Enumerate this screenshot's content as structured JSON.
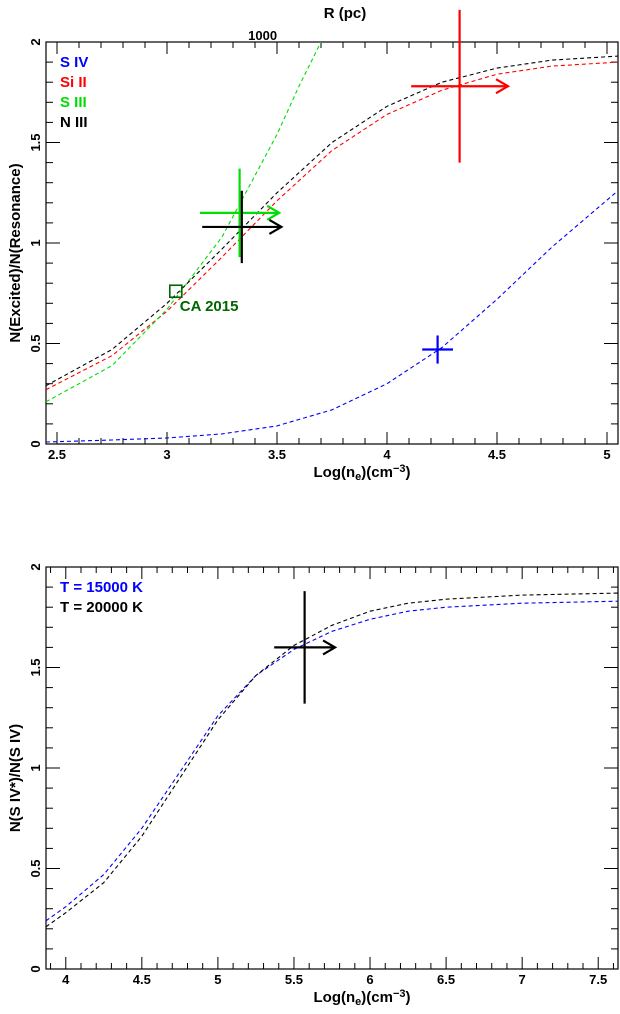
{
  "chart_data": [
    {
      "type": "line",
      "top_axis_label": "R (pc)",
      "top_tick_label": "1000",
      "top_tick_x": 3.23,
      "xlabel": "Log(n_e)(cm^-3)",
      "xlabel_main": "Log(n",
      "xlabel_sub": "e",
      "xlabel_mid": ")(cm",
      "xlabel_sup": "−3",
      "xlabel_end": ")",
      "ylabel": "N(Excited)/N(Resonance)",
      "xlim": [
        2.45,
        5.05
      ],
      "ylim": [
        0,
        2
      ],
      "xticks": [
        2.5,
        3,
        3.5,
        4,
        4.5,
        5
      ],
      "xtick_labels": [
        "2.5",
        "3",
        "3.5",
        "4",
        "4.5",
        "5"
      ],
      "yticks": [
        0,
        0.5,
        1,
        1.5,
        2
      ],
      "ytick_labels": [
        "0",
        "0.5",
        "1",
        "1.5",
        "2"
      ],
      "legend": [
        {
          "label": "S IV",
          "color": "#0000ff"
        },
        {
          "label": "Si II",
          "color": "#ff0000"
        },
        {
          "label": "S III",
          "color": "#00dd00"
        },
        {
          "label": "N III",
          "color": "#000000"
        }
      ],
      "series": [
        {
          "name": "S IV",
          "color": "#0000ff",
          "style": "dashed",
          "x": [
            2.45,
            2.75,
            3.0,
            3.25,
            3.5,
            3.75,
            4.0,
            4.25,
            4.5,
            4.75,
            5.05
          ],
          "y": [
            0.01,
            0.02,
            0.03,
            0.05,
            0.09,
            0.17,
            0.3,
            0.48,
            0.72,
            0.98,
            1.26
          ]
        },
        {
          "name": "Si II",
          "color": "#ff0000",
          "style": "dashed",
          "x": [
            2.45,
            2.75,
            3.0,
            3.25,
            3.5,
            3.75,
            4.0,
            4.25,
            4.5,
            4.75,
            5.05
          ],
          "y": [
            0.27,
            0.44,
            0.66,
            0.93,
            1.21,
            1.46,
            1.64,
            1.76,
            1.84,
            1.88,
            1.9
          ]
        },
        {
          "name": "S III",
          "color": "#00dd00",
          "style": "dashed",
          "x": [
            2.45,
            2.75,
            3.0,
            3.25,
            3.5,
            3.6,
            3.7
          ],
          "y": [
            0.21,
            0.39,
            0.67,
            1.03,
            1.54,
            1.78,
            2.0
          ]
        },
        {
          "name": "N III",
          "color": "#000000",
          "style": "dashed",
          "x": [
            2.45,
            2.75,
            3.0,
            3.25,
            3.5,
            3.75,
            4.0,
            4.25,
            4.5,
            4.75,
            5.05
          ],
          "y": [
            0.29,
            0.47,
            0.7,
            0.97,
            1.25,
            1.5,
            1.68,
            1.8,
            1.87,
            1.91,
            1.93
          ]
        }
      ],
      "measurements": [
        {
          "color": "#0000ff",
          "x": 4.23,
          "y": 0.47,
          "xerr": 0.07,
          "yerr": 0.07,
          "lower_limit_arrow": false
        },
        {
          "color": "#ff0000",
          "x": 4.33,
          "y": 1.78,
          "xerr": 0.22,
          "yerr": 0.38,
          "lower_limit_arrow": true
        },
        {
          "color": "#00dd00",
          "x": 3.33,
          "y": 1.15,
          "xerr": 0.18,
          "yerr": 0.22,
          "lower_limit_arrow": true
        },
        {
          "color": "#000000",
          "x": 3.34,
          "y": 1.08,
          "xerr": 0.18,
          "yerr": 0.18,
          "lower_limit_arrow": true
        }
      ],
      "annotation": {
        "label": "CA 2015",
        "x": 3.04,
        "y": 0.76,
        "color": "#006600"
      }
    },
    {
      "type": "line",
      "xlabel": "Log(n_e)(cm^-3)",
      "xlabel_main": "Log(n",
      "xlabel_sub": "e",
      "xlabel_mid": ")(cm",
      "xlabel_sup": "−3",
      "xlabel_end": ")",
      "ylabel": "N(S IV*)/N(S IV)",
      "xlim": [
        3.87,
        7.63
      ],
      "ylim": [
        0,
        2
      ],
      "xticks": [
        4,
        4.5,
        5,
        5.5,
        6,
        6.5,
        7,
        7.5
      ],
      "xtick_labels": [
        "4",
        "4.5",
        "5",
        "5.5",
        "6",
        "6.5",
        "7",
        "7.5"
      ],
      "yticks": [
        0,
        0.5,
        1,
        1.5,
        2
      ],
      "ytick_labels": [
        "0",
        "0.5",
        "1",
        "1.5",
        "2"
      ],
      "legend": [
        {
          "label": "T = 15000 K",
          "color": "#0000ff"
        },
        {
          "label": "T = 20000 K",
          "color": "#000000"
        }
      ],
      "series": [
        {
          "name": "T = 15000 K",
          "color": "#0000ff",
          "style": "dashed",
          "x": [
            3.87,
            4.0,
            4.25,
            4.5,
            4.75,
            5.0,
            5.25,
            5.5,
            5.75,
            6.0,
            6.25,
            6.5,
            7.0,
            7.63
          ],
          "y": [
            0.24,
            0.31,
            0.47,
            0.7,
            0.98,
            1.26,
            1.46,
            1.59,
            1.68,
            1.74,
            1.78,
            1.8,
            1.82,
            1.83
          ]
        },
        {
          "name": "T = 20000 K",
          "color": "#000000",
          "style": "dashed",
          "x": [
            3.87,
            4.0,
            4.25,
            4.5,
            4.75,
            5.0,
            5.25,
            5.5,
            5.75,
            6.0,
            6.25,
            6.5,
            7.0,
            7.63
          ],
          "y": [
            0.21,
            0.28,
            0.43,
            0.66,
            0.95,
            1.24,
            1.46,
            1.61,
            1.71,
            1.78,
            1.82,
            1.84,
            1.86,
            1.87
          ]
        }
      ],
      "measurements": [
        {
          "color": "#000000",
          "x": 5.57,
          "y": 1.6,
          "xerr": 0.2,
          "yerr": 0.28,
          "lower_limit_arrow": true
        }
      ]
    }
  ]
}
